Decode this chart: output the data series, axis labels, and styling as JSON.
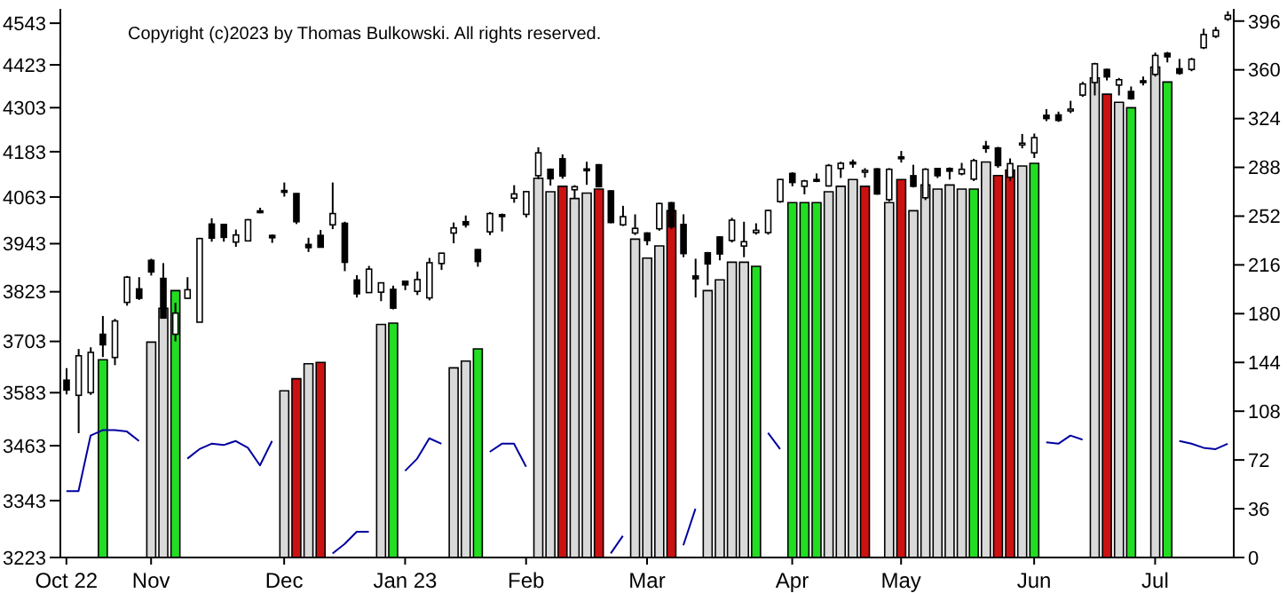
{
  "chart_data": {
    "type": "candlestick",
    "color": "#000000",
    "log": true,
    "categories": [
      "Oct 22",
      null,
      null,
      null,
      null,
      null,
      null,
      "Nov",
      null,
      null,
      null,
      null,
      null,
      null,
      null,
      null,
      null,
      null,
      "Dec",
      null,
      null,
      null,
      null,
      null,
      null,
      null,
      null,
      null,
      "Jan 23",
      null,
      null,
      null,
      null,
      null,
      null,
      null,
      null,
      null,
      "Feb",
      null,
      null,
      null,
      null,
      null,
      null,
      null,
      null,
      null,
      "Mar",
      null,
      null,
      null,
      null,
      null,
      null,
      null,
      null,
      null,
      null,
      null,
      "Apr",
      null,
      null,
      null,
      null,
      null,
      null,
      null,
      null,
      "May",
      null,
      null,
      null,
      null,
      null,
      null,
      null,
      null,
      null,
      null,
      "Jun",
      null,
      null,
      null,
      null,
      null,
      null,
      null,
      null,
      null,
      "Jul",
      null,
      null,
      null,
      null,
      null,
      null
    ],
    "ohlc": [
      [
        3612,
        3640,
        3579,
        3589
      ],
      [
        3577,
        3685,
        3491,
        3669
      ],
      [
        3583,
        3689,
        3578,
        3677
      ],
      [
        3720,
        3764,
        3666,
        3695
      ],
      [
        3665,
        3757,
        3647,
        3752
      ],
      [
        3797,
        3862,
        3789,
        3859
      ],
      [
        3830,
        3859,
        3803,
        3807
      ],
      [
        3901,
        3905,
        3863,
        3872
      ],
      [
        3856,
        3894,
        3758,
        3759
      ],
      [
        3720,
        3796,
        3703,
        3771
      ],
      [
        3807,
        3859,
        3806,
        3828
      ],
      [
        3749,
        3958,
        3749,
        3956
      ],
      [
        3993,
        4008,
        3948,
        3957
      ],
      [
        3992,
        3993,
        3948,
        3959
      ],
      [
        3947,
        3979,
        3935,
        3965
      ],
      [
        3950,
        4006,
        3950,
        4004
      ],
      [
        4027,
        4035,
        4021,
        4026
      ],
      [
        3964,
        3966,
        3945,
        3958
      ],
      [
        4080,
        4101,
        4064,
        4077
      ],
      [
        4072,
        4073,
        3993,
        3999
      ],
      [
        3941,
        3958,
        3922,
        3933
      ],
      [
        3964,
        3978,
        3933,
        3934
      ],
      [
        3991,
        4101,
        3980,
        4020
      ],
      [
        3995,
        3999,
        3874,
        3896
      ],
      [
        3852,
        3864,
        3809,
        3818
      ],
      [
        3821,
        3887,
        3820,
        3879
      ],
      [
        3822,
        3846,
        3800,
        3845
      ],
      [
        3829,
        3838,
        3780,
        3783
      ],
      [
        3849,
        3850,
        3827,
        3840
      ],
      [
        3824,
        3873,
        3815,
        3853
      ],
      [
        3808,
        3907,
        3802,
        3895
      ],
      [
        3893,
        3920,
        3877,
        3919
      ],
      [
        3970,
        3997,
        3944,
        3983
      ],
      [
        3999,
        4015,
        3984,
        3991
      ],
      [
        3928,
        3929,
        3885,
        3898
      ],
      [
        3973,
        4024,
        3965,
        4020
      ],
      [
        4017,
        4020,
        3974,
        4016
      ],
      [
        4060,
        4094,
        4048,
        4071
      ],
      [
        4018,
        4079,
        4010,
        4077
      ],
      [
        4119,
        4195,
        4110,
        4180
      ],
      [
        4136,
        4138,
        4093,
        4111
      ],
      [
        4164,
        4176,
        4111,
        4118
      ],
      [
        4082,
        4094,
        4060,
        4090
      ],
      [
        4137,
        4156,
        4095,
        4136
      ],
      [
        4148,
        4150,
        4088,
        4090
      ],
      [
        4079,
        4081,
        3995,
        3997
      ],
      [
        3991,
        4040,
        3988,
        4012
      ],
      [
        3970,
        4018,
        3965,
        3982
      ],
      [
        3970,
        3972,
        3939,
        3951
      ],
      [
        3981,
        4048,
        3976,
        4046
      ],
      [
        4048,
        4050,
        3980,
        3986
      ],
      [
        3992,
        4018,
        3909,
        3918
      ],
      [
        3862,
        3905,
        3809,
        3855
      ],
      [
        3920,
        3922,
        3839,
        3892
      ],
      [
        3960,
        3962,
        3901,
        3917
      ],
      [
        3951,
        4009,
        3946,
        4003
      ],
      [
        3937,
        3999,
        3909,
        3948
      ],
      [
        3971,
        3995,
        3966,
        3977
      ],
      [
        3971,
        4030,
        3966,
        4028
      ],
      [
        4051,
        4110,
        4048,
        4109
      ],
      [
        4125,
        4128,
        4091,
        4101
      ],
      [
        4091,
        4108,
        4070,
        4105
      ],
      [
        4109,
        4125,
        4102,
        4108
      ],
      [
        4092,
        4150,
        4090,
        4146
      ],
      [
        4138,
        4156,
        4113,
        4152
      ],
      [
        4155,
        4162,
        4140,
        4154
      ],
      [
        4130,
        4139,
        4114,
        4133
      ],
      [
        4137,
        4139,
        4069,
        4071
      ],
      [
        4056,
        4139,
        4051,
        4136
      ],
      [
        4169,
        4185,
        4154,
        4168
      ],
      [
        4119,
        4148,
        4088,
        4091
      ],
      [
        4061,
        4139,
        4055,
        4136
      ],
      [
        4138,
        4140,
        4113,
        4119
      ],
      [
        4138,
        4141,
        4109,
        4131
      ],
      [
        4124,
        4153,
        4120,
        4136
      ],
      [
        4110,
        4164,
        4105,
        4159
      ],
      [
        4198,
        4212,
        4180,
        4192
      ],
      [
        4193,
        4196,
        4140,
        4146
      ],
      [
        4115,
        4165,
        4105,
        4151
      ],
      [
        4205,
        4231,
        4192,
        4206
      ],
      [
        4180,
        4232,
        4166,
        4221
      ],
      [
        4282,
        4299,
        4266,
        4273
      ],
      [
        4283,
        4292,
        4264,
        4268
      ],
      [
        4294,
        4322,
        4288,
        4299
      ],
      [
        4338,
        4375,
        4333,
        4369
      ],
      [
        4373,
        4429,
        4337,
        4426
      ],
      [
        4410,
        4412,
        4379,
        4389
      ],
      [
        4366,
        4386,
        4337,
        4381
      ],
      [
        4348,
        4362,
        4325,
        4328
      ],
      [
        4378,
        4390,
        4365,
        4377
      ],
      [
        4396,
        4458,
        4390,
        4450
      ],
      [
        4456,
        4460,
        4430,
        4446
      ],
      [
        4412,
        4440,
        4395,
        4399
      ],
      [
        4410,
        4443,
        4405,
        4439
      ],
      [
        4472,
        4527,
        4468,
        4510
      ],
      [
        4505,
        4532,
        4500,
        4522
      ],
      [
        4555,
        4578,
        4550,
        4566
      ]
    ],
    "series": [
      {
        "type": "bar",
        "axis": "y2",
        "values": [
          null,
          null,
          null,
          146,
          null,
          null,
          null,
          159,
          184,
          197,
          null,
          null,
          null,
          null,
          null,
          null,
          null,
          null,
          123,
          132,
          143,
          144,
          null,
          null,
          null,
          null,
          172,
          173,
          null,
          null,
          null,
          null,
          140,
          145,
          154,
          null,
          null,
          null,
          null,
          280,
          270,
          274,
          265,
          269,
          272,
          null,
          null,
          235,
          221,
          230,
          256,
          null,
          null,
          197,
          205,
          218,
          218,
          215,
          null,
          null,
          262,
          262,
          262,
          270,
          274,
          279,
          274,
          null,
          262,
          279,
          256,
          275,
          272,
          275,
          272,
          272,
          292,
          282,
          286,
          289,
          291,
          null,
          null,
          null,
          null,
          354,
          342,
          336,
          332,
          null,
          362,
          351,
          null,
          null,
          null,
          null,
          null
        ],
        "colors": [
          null,
          null,
          null,
          "#22dd22",
          null,
          null,
          null,
          "#d9d9d9",
          "#d9d9d9",
          "#22dd22",
          null,
          null,
          null,
          null,
          null,
          null,
          null,
          null,
          "#d9d9d9",
          "#cc1111",
          "#d9d9d9",
          "#cc1111",
          null,
          null,
          null,
          null,
          "#d9d9d9",
          "#22dd22",
          null,
          null,
          null,
          null,
          "#d9d9d9",
          "#d9d9d9",
          "#22dd22",
          null,
          null,
          null,
          null,
          "#d9d9d9",
          "#d9d9d9",
          "#cc1111",
          "#d9d9d9",
          "#d9d9d9",
          "#cc1111",
          null,
          null,
          "#d9d9d9",
          "#d9d9d9",
          "#d9d9d9",
          "#cc1111",
          null,
          null,
          "#d9d9d9",
          "#d9d9d9",
          "#d9d9d9",
          "#d9d9d9",
          "#22dd22",
          null,
          null,
          "#22dd22",
          "#22dd22",
          "#22dd22",
          "#d9d9d9",
          "#d9d9d9",
          "#d9d9d9",
          "#cc1111",
          null,
          "#d9d9d9",
          "#cc1111",
          "#d9d9d9",
          "#d9d9d9",
          "#d9d9d9",
          "#d9d9d9",
          "#d9d9d9",
          "#22dd22",
          "#d9d9d9",
          "#cc1111",
          "#cc1111",
          "#d9d9d9",
          "#22dd22",
          null,
          null,
          null,
          null,
          "#d9d9d9",
          "#cc1111",
          "#d9d9d9",
          "#22dd22",
          null,
          "#d9d9d9",
          "#22dd22",
          null,
          null,
          null,
          null,
          null
        ]
      },
      {
        "type": "line",
        "axis": "y2",
        "color": "#0000a0",
        "values": [
          49,
          49,
          90,
          94,
          94,
          93,
          86,
          null,
          null,
          null,
          73,
          80,
          84,
          83,
          86,
          81,
          68,
          86,
          null,
          null,
          null,
          null,
          3,
          10,
          19,
          19,
          null,
          null,
          64,
          73,
          88,
          84,
          null,
          null,
          null,
          78,
          84,
          84,
          67,
          null,
          null,
          null,
          null,
          null,
          null,
          3,
          16,
          null,
          null,
          null,
          null,
          9,
          36,
          null,
          null,
          null,
          null,
          null,
          92,
          80,
          null,
          null,
          null,
          null,
          null,
          null,
          null,
          null,
          null,
          null,
          null,
          null,
          null,
          null,
          null,
          null,
          null,
          null,
          null,
          null,
          null,
          85,
          84,
          90,
          87,
          null,
          null,
          null,
          null,
          null,
          null,
          null,
          86,
          84,
          81,
          80,
          84
        ]
      }
    ],
    "ylim": [
      3223,
      4585
    ],
    "yticks": [
      3223,
      3343,
      3463,
      3583,
      3703,
      3823,
      3943,
      4063,
      4183,
      4303,
      4423,
      4543
    ],
    "y2lim": [
      0,
      405
    ],
    "y2ticks": [
      0,
      36,
      72,
      108,
      144,
      180,
      216,
      252,
      288,
      324,
      360,
      396
    ],
    "annotations": [
      "Copyright (c)2023 by Thomas Bulkowski. All rights reserved."
    ]
  }
}
